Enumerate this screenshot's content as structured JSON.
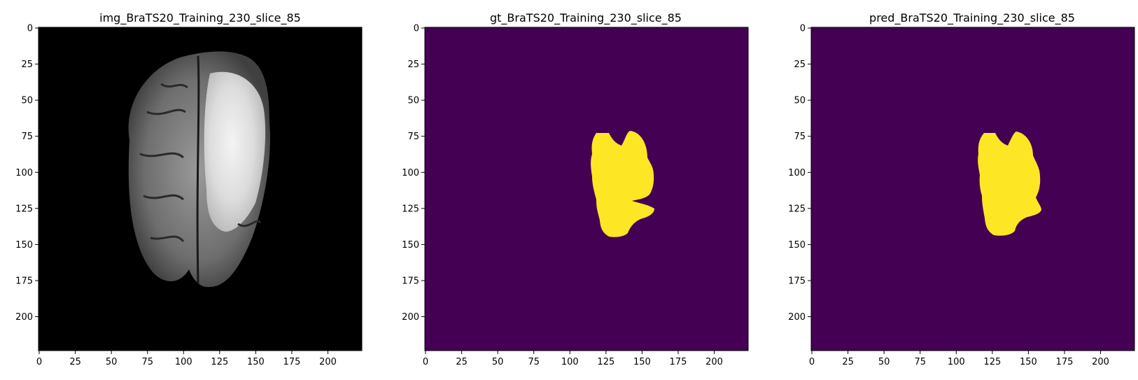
{
  "panels": [
    {
      "title": "img_BraTS20_Training_230_slice_85",
      "kind": "mri",
      "background": "#000000"
    },
    {
      "title": "gt_BraTS20_Training_230_slice_85",
      "kind": "mask",
      "background": "#440154",
      "foreground": "#fde725"
    },
    {
      "title": "pred_BraTS20_Training_230_slice_85",
      "kind": "mask",
      "background": "#440154",
      "foreground": "#fde725"
    }
  ],
  "axes": {
    "x_ticks": [
      "0",
      "25",
      "50",
      "75",
      "100",
      "125",
      "150",
      "175",
      "200"
    ],
    "y_ticks": [
      "0",
      "25",
      "50",
      "75",
      "100",
      "125",
      "150",
      "175",
      "200"
    ]
  }
}
